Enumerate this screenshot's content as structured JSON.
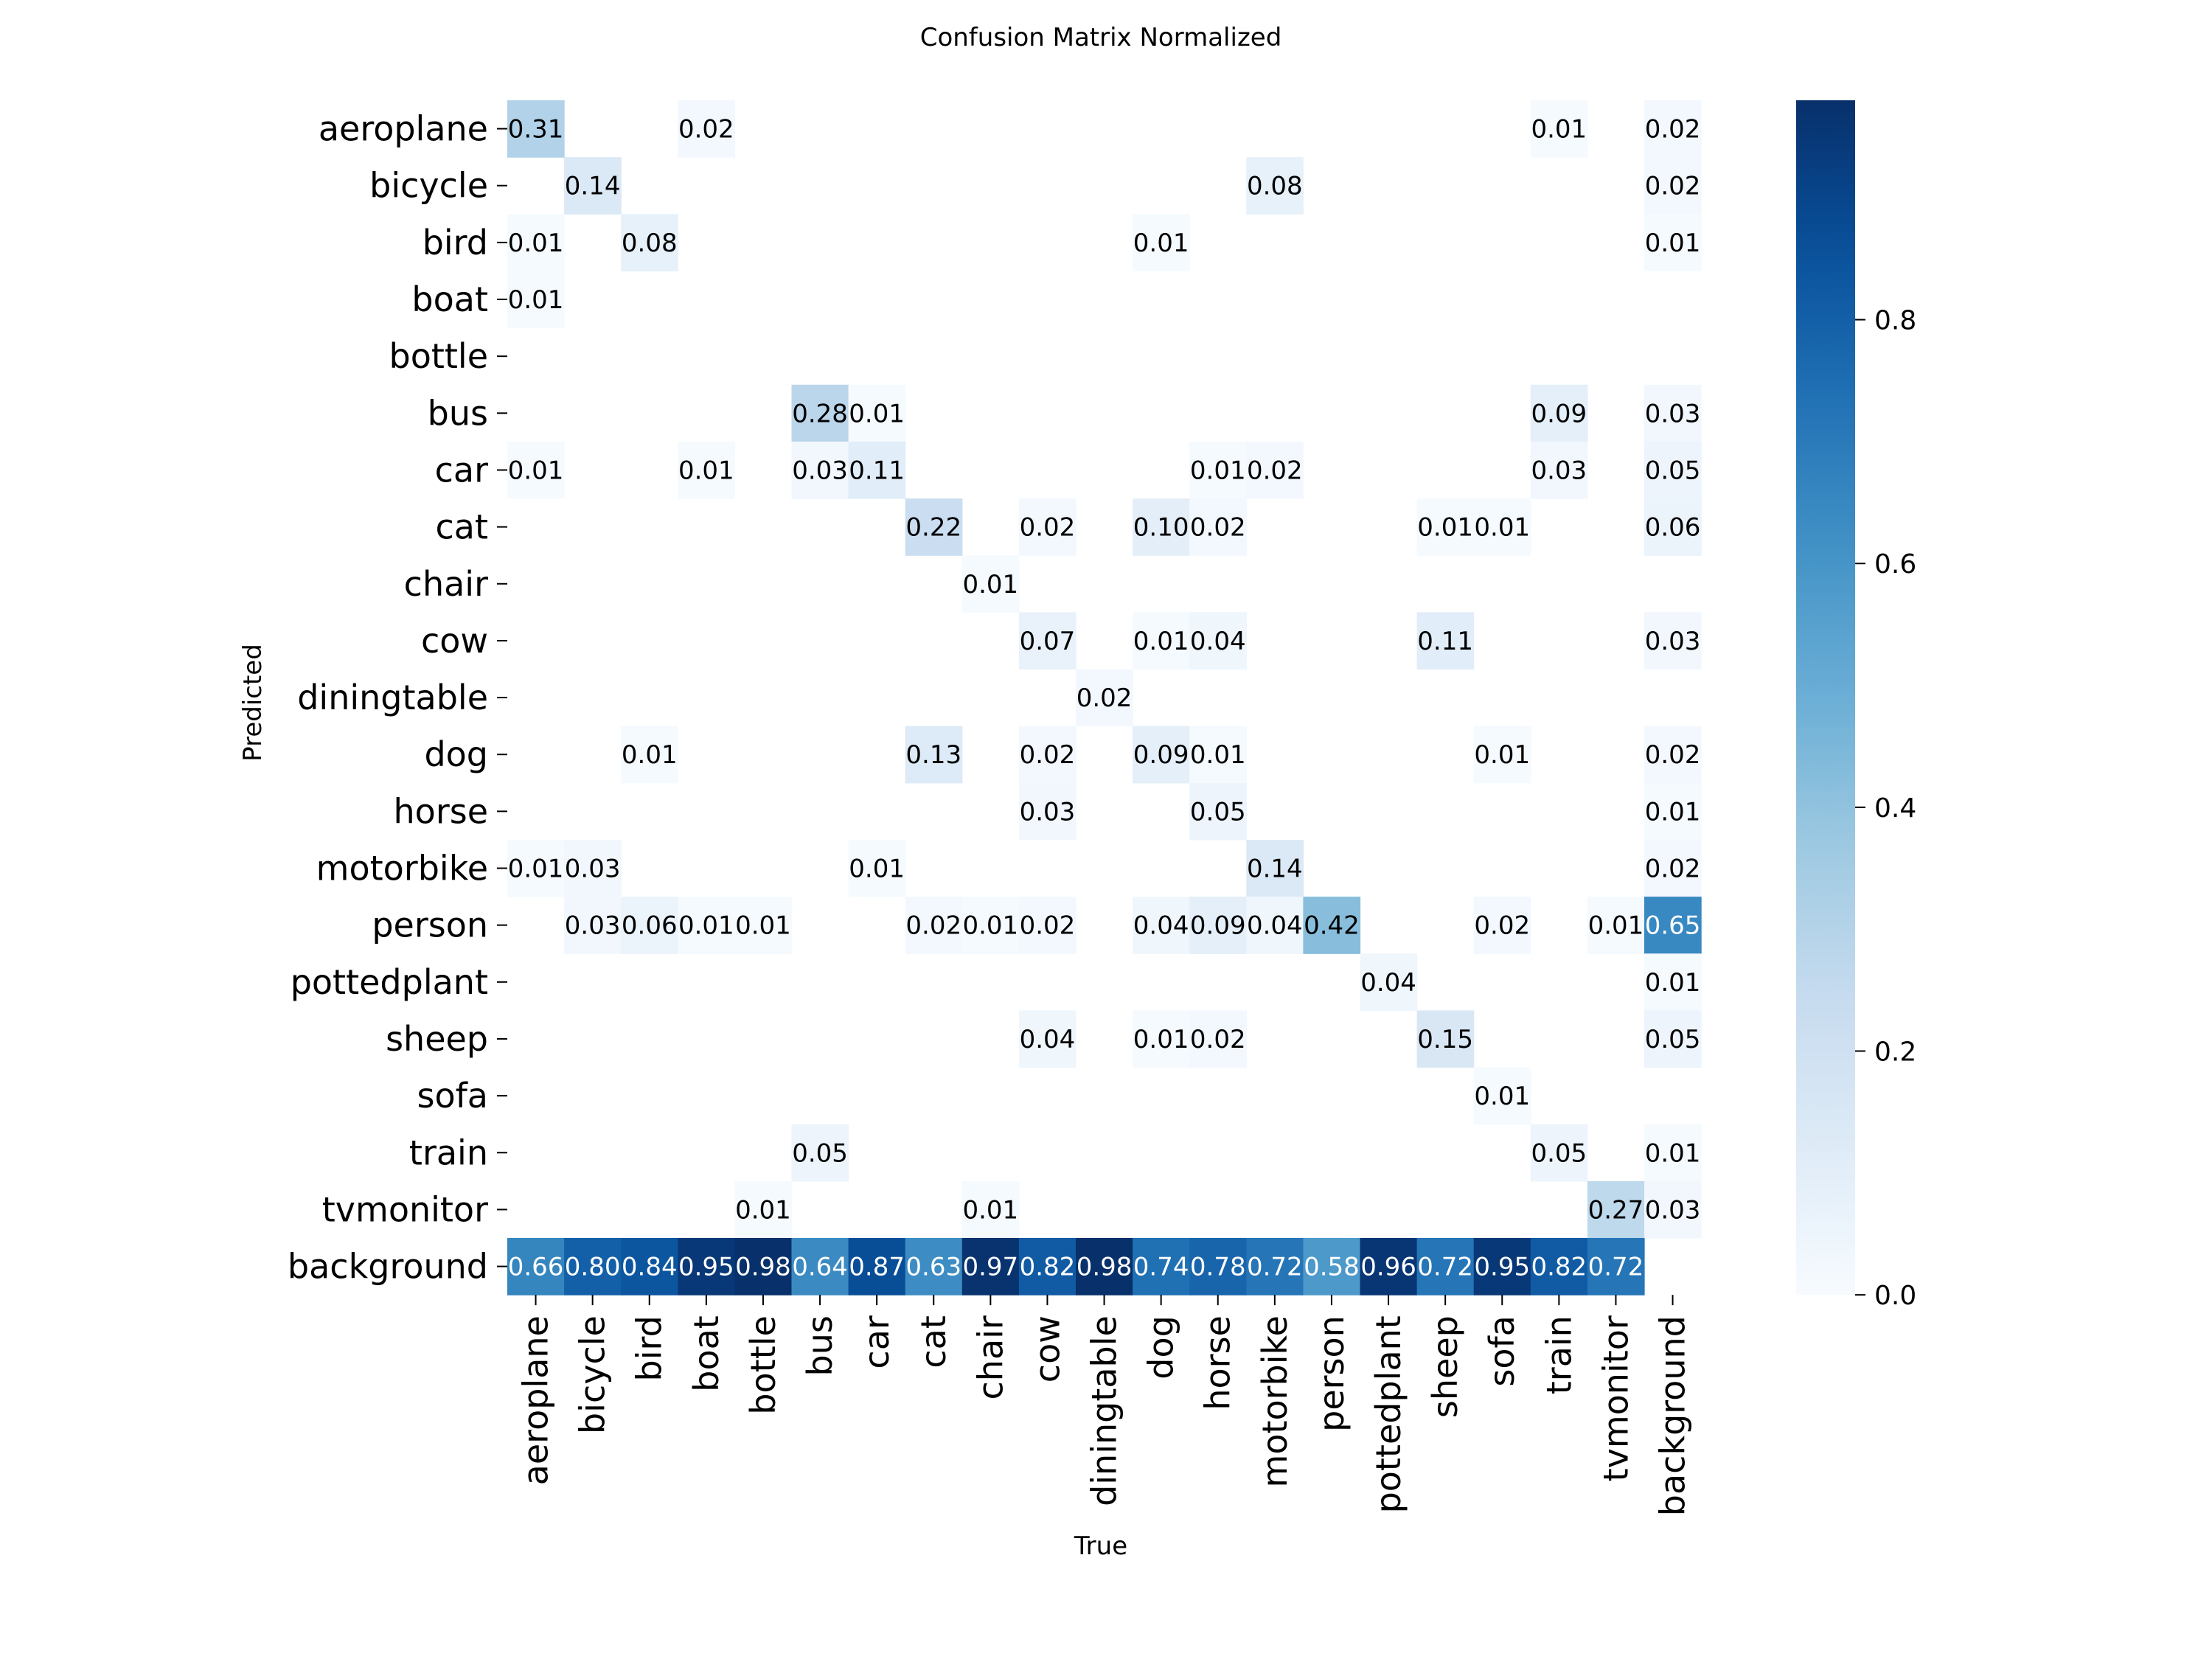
{
  "chart_data": {
    "type": "heatmap",
    "title": "Confusion Matrix Normalized",
    "xlabel": "True",
    "ylabel": "Predicted",
    "colormap": "Blues",
    "vmin": 0.0,
    "vmax": 0.98,
    "colorbar_ticks": [
      0.0,
      0.2,
      0.4,
      0.6,
      0.8
    ],
    "colorbar_tick_labels": [
      "0.0",
      "0.2",
      "0.4",
      "0.6",
      "0.8"
    ],
    "grid": false,
    "x_categories": [
      "aeroplane",
      "bicycle",
      "bird",
      "boat",
      "bottle",
      "bus",
      "car",
      "cat",
      "chair",
      "cow",
      "diningtable",
      "dog",
      "horse",
      "motorbike",
      "person",
      "pottedplant",
      "sheep",
      "sofa",
      "train",
      "tvmonitor",
      "background"
    ],
    "y_categories": [
      "aeroplane",
      "bicycle",
      "bird",
      "boat",
      "bottle",
      "bus",
      "car",
      "cat",
      "chair",
      "cow",
      "diningtable",
      "dog",
      "horse",
      "motorbike",
      "person",
      "pottedplant",
      "sheep",
      "sofa",
      "train",
      "tvmonitor",
      "background"
    ],
    "cells": [
      {
        "r": 0,
        "c": 0,
        "v": 0.31
      },
      {
        "r": 0,
        "c": 3,
        "v": 0.02
      },
      {
        "r": 0,
        "c": 18,
        "v": 0.01
      },
      {
        "r": 0,
        "c": 20,
        "v": 0.02
      },
      {
        "r": 1,
        "c": 1,
        "v": 0.14
      },
      {
        "r": 1,
        "c": 13,
        "v": 0.08
      },
      {
        "r": 1,
        "c": 20,
        "v": 0.02
      },
      {
        "r": 2,
        "c": 0,
        "v": 0.01
      },
      {
        "r": 2,
        "c": 2,
        "v": 0.08
      },
      {
        "r": 2,
        "c": 11,
        "v": 0.01
      },
      {
        "r": 2,
        "c": 20,
        "v": 0.01
      },
      {
        "r": 3,
        "c": 0,
        "v": 0.01
      },
      {
        "r": 5,
        "c": 5,
        "v": 0.28
      },
      {
        "r": 5,
        "c": 6,
        "v": 0.01
      },
      {
        "r": 5,
        "c": 18,
        "v": 0.09
      },
      {
        "r": 5,
        "c": 20,
        "v": 0.03
      },
      {
        "r": 6,
        "c": 0,
        "v": 0.01
      },
      {
        "r": 6,
        "c": 3,
        "v": 0.01
      },
      {
        "r": 6,
        "c": 5,
        "v": 0.03
      },
      {
        "r": 6,
        "c": 6,
        "v": 0.11
      },
      {
        "r": 6,
        "c": 12,
        "v": 0.01
      },
      {
        "r": 6,
        "c": 13,
        "v": 0.02
      },
      {
        "r": 6,
        "c": 18,
        "v": 0.03
      },
      {
        "r": 6,
        "c": 20,
        "v": 0.05
      },
      {
        "r": 7,
        "c": 7,
        "v": 0.22
      },
      {
        "r": 7,
        "c": 9,
        "v": 0.02
      },
      {
        "r": 7,
        "c": 11,
        "v": 0.1
      },
      {
        "r": 7,
        "c": 12,
        "v": 0.02
      },
      {
        "r": 7,
        "c": 16,
        "v": 0.01
      },
      {
        "r": 7,
        "c": 17,
        "v": 0.01
      },
      {
        "r": 7,
        "c": 20,
        "v": 0.06
      },
      {
        "r": 8,
        "c": 8,
        "v": 0.01
      },
      {
        "r": 9,
        "c": 9,
        "v": 0.07
      },
      {
        "r": 9,
        "c": 11,
        "v": 0.01
      },
      {
        "r": 9,
        "c": 12,
        "v": 0.04
      },
      {
        "r": 9,
        "c": 16,
        "v": 0.11
      },
      {
        "r": 9,
        "c": 20,
        "v": 0.03
      },
      {
        "r": 10,
        "c": 10,
        "v": 0.02
      },
      {
        "r": 11,
        "c": 2,
        "v": 0.01
      },
      {
        "r": 11,
        "c": 7,
        "v": 0.13
      },
      {
        "r": 11,
        "c": 9,
        "v": 0.02
      },
      {
        "r": 11,
        "c": 11,
        "v": 0.09
      },
      {
        "r": 11,
        "c": 12,
        "v": 0.01
      },
      {
        "r": 11,
        "c": 17,
        "v": 0.01
      },
      {
        "r": 11,
        "c": 20,
        "v": 0.02
      },
      {
        "r": 12,
        "c": 9,
        "v": 0.03
      },
      {
        "r": 12,
        "c": 12,
        "v": 0.05
      },
      {
        "r": 12,
        "c": 20,
        "v": 0.01
      },
      {
        "r": 13,
        "c": 0,
        "v": 0.01
      },
      {
        "r": 13,
        "c": 1,
        "v": 0.03
      },
      {
        "r": 13,
        "c": 6,
        "v": 0.01
      },
      {
        "r": 13,
        "c": 13,
        "v": 0.14
      },
      {
        "r": 13,
        "c": 20,
        "v": 0.02
      },
      {
        "r": 14,
        "c": 1,
        "v": 0.03
      },
      {
        "r": 14,
        "c": 2,
        "v": 0.06
      },
      {
        "r": 14,
        "c": 3,
        "v": 0.01
      },
      {
        "r": 14,
        "c": 4,
        "v": 0.01
      },
      {
        "r": 14,
        "c": 7,
        "v": 0.02
      },
      {
        "r": 14,
        "c": 8,
        "v": 0.01
      },
      {
        "r": 14,
        "c": 9,
        "v": 0.02
      },
      {
        "r": 14,
        "c": 11,
        "v": 0.04
      },
      {
        "r": 14,
        "c": 12,
        "v": 0.09
      },
      {
        "r": 14,
        "c": 13,
        "v": 0.04
      },
      {
        "r": 14,
        "c": 14,
        "v": 0.42
      },
      {
        "r": 14,
        "c": 17,
        "v": 0.02
      },
      {
        "r": 14,
        "c": 19,
        "v": 0.01
      },
      {
        "r": 14,
        "c": 20,
        "v": 0.65
      },
      {
        "r": 15,
        "c": 15,
        "v": 0.04
      },
      {
        "r": 15,
        "c": 20,
        "v": 0.01
      },
      {
        "r": 16,
        "c": 9,
        "v": 0.04
      },
      {
        "r": 16,
        "c": 11,
        "v": 0.01
      },
      {
        "r": 16,
        "c": 12,
        "v": 0.02
      },
      {
        "r": 16,
        "c": 16,
        "v": 0.15
      },
      {
        "r": 16,
        "c": 20,
        "v": 0.05
      },
      {
        "r": 17,
        "c": 17,
        "v": 0.01
      },
      {
        "r": 18,
        "c": 5,
        "v": 0.05
      },
      {
        "r": 18,
        "c": 18,
        "v": 0.05
      },
      {
        "r": 18,
        "c": 20,
        "v": 0.01
      },
      {
        "r": 19,
        "c": 4,
        "v": 0.01
      },
      {
        "r": 19,
        "c": 8,
        "v": 0.01
      },
      {
        "r": 19,
        "c": 19,
        "v": 0.27
      },
      {
        "r": 19,
        "c": 20,
        "v": 0.03
      },
      {
        "r": 20,
        "c": 0,
        "v": 0.66
      },
      {
        "r": 20,
        "c": 1,
        "v": 0.8
      },
      {
        "r": 20,
        "c": 2,
        "v": 0.84
      },
      {
        "r": 20,
        "c": 3,
        "v": 0.95
      },
      {
        "r": 20,
        "c": 4,
        "v": 0.98
      },
      {
        "r": 20,
        "c": 5,
        "v": 0.64
      },
      {
        "r": 20,
        "c": 6,
        "v": 0.87
      },
      {
        "r": 20,
        "c": 7,
        "v": 0.63
      },
      {
        "r": 20,
        "c": 8,
        "v": 0.97
      },
      {
        "r": 20,
        "c": 9,
        "v": 0.82
      },
      {
        "r": 20,
        "c": 10,
        "v": 0.98
      },
      {
        "r": 20,
        "c": 11,
        "v": 0.74
      },
      {
        "r": 20,
        "c": 12,
        "v": 0.78
      },
      {
        "r": 20,
        "c": 13,
        "v": 0.72
      },
      {
        "r": 20,
        "c": 14,
        "v": 0.58
      },
      {
        "r": 20,
        "c": 15,
        "v": 0.96
      },
      {
        "r": 20,
        "c": 16,
        "v": 0.72
      },
      {
        "r": 20,
        "c": 17,
        "v": 0.95
      },
      {
        "r": 20,
        "c": 18,
        "v": 0.82
      },
      {
        "r": 20,
        "c": 19,
        "v": 0.72
      }
    ]
  }
}
